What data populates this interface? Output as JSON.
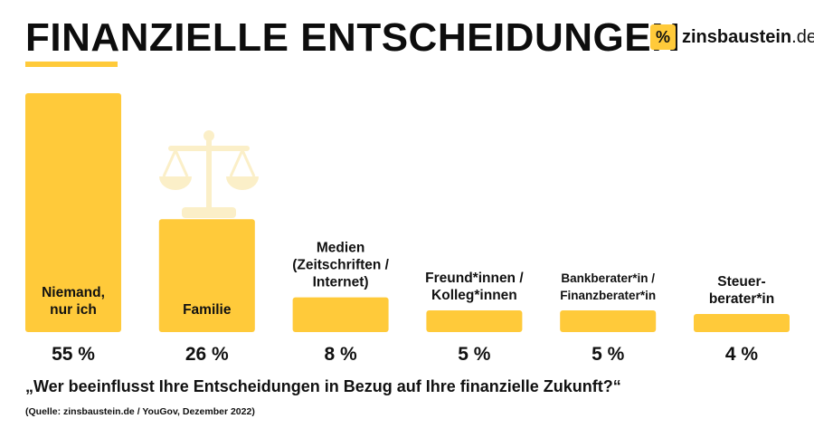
{
  "header": {
    "title": "FINANZIELLE ENTSCHEIDUNGEN",
    "logo_mark": "%",
    "logo_name": "zinsbaustein",
    "logo_tld": ".de"
  },
  "colors": {
    "bar": "#ffca3a",
    "icon": "#fbefc8",
    "text": "#111111"
  },
  "chart_data": {
    "type": "bar",
    "title": "FINANZIELLE ENTSCHEIDUNGEN",
    "categories": [
      [
        "Niemand,",
        "nur ich"
      ],
      [
        "Familie"
      ],
      [
        "Medien",
        "(Zeitschriften /",
        "Internet)"
      ],
      [
        "Freund*innen /",
        "Kolleg*innen"
      ],
      [
        "Bankberater*in /",
        "Finanzberater*in"
      ],
      [
        "Steuer-",
        "berater*in"
      ]
    ],
    "values": [
      55,
      26,
      8,
      5,
      5,
      4
    ],
    "value_labels": [
      "55 %",
      "26 %",
      "8 %",
      "5 %",
      "5 %",
      "4 %"
    ],
    "unit": "%",
    "ylim": [
      0,
      55
    ],
    "grid": false,
    "legend": "none",
    "decorative_icon": "scales-icon"
  },
  "footer": {
    "question": "„Wer beeinflusst Ihre Entscheidungen in Bezug auf Ihre finanzielle Zukunft?“",
    "source": "(Quelle: zinsbaustein.de / YouGov, Dezember 2022)"
  }
}
